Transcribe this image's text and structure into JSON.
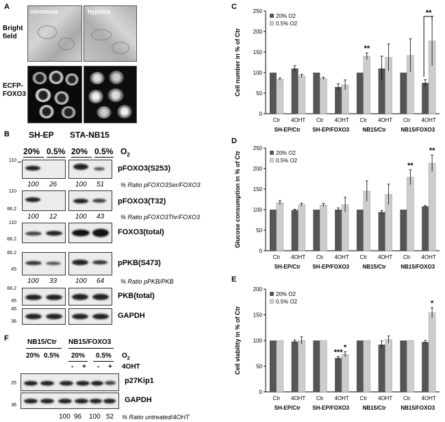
{
  "colors": {
    "dark_bar": "#555555",
    "light_bar": "#cccccc",
    "error_bar": "#000000"
  },
  "panel_a": {
    "label": "A",
    "col_normoxia": "normoxia",
    "col_hypoxia": "hypoxia",
    "row_bright_1": "Bright",
    "row_bright_2": "field",
    "row_ecfp_1": "ECFP-",
    "row_ecfp_2": "FOXO3"
  },
  "panel_b": {
    "label": "B",
    "group_1": "SH-EP",
    "group_2": "STA-NB15",
    "pct_20": "20%",
    "pct_05": "0.5%",
    "o2_label": "O",
    "o2_sub": "2",
    "mw_110": "110",
    "mw_66": "66.2",
    "mw_45": "45",
    "mw_36": "36",
    "blots": [
      {
        "label": "pFOXO3(S253)",
        "ratio_text": "% Ratio pFOXO3Ser/FOXO3",
        "ratios": [
          "100",
          "26",
          "100",
          "51"
        ]
      },
      {
        "label": "pFOXO3(T32)",
        "ratio_text": "% Ratio pFOXO3Thr/FOXO3",
        "ratios": [
          "100",
          "12",
          "100",
          "43"
        ]
      },
      {
        "label": "FOXO3(total)"
      },
      {
        "label": "pPKB(S473)",
        "ratio_text": "% Ratio pPKB/PKB",
        "ratios": [
          "100",
          "33",
          "100",
          "64"
        ]
      },
      {
        "label": "PKB(total)"
      },
      {
        "label": "GAPDH"
      }
    ]
  },
  "panel_f": {
    "label": "F",
    "group_1": "NB15/Ctr",
    "group_2": "NB15/FOXO3",
    "pct_20": "20%",
    "pct_05": "0.5%",
    "o2_label": "O",
    "o2_sub": "2",
    "ohth_label": "4OHT",
    "minus": "-",
    "plus": "+",
    "mw_25": "25",
    "mw_36": "36",
    "blot_1": "p27Kip1",
    "blot_2": "GAPDH",
    "ratios": [
      "100",
      "96",
      "100",
      "52"
    ],
    "ratio_text": "% Ratio untreated/4OHT"
  },
  "chart_data": [
    {
      "panel": "C",
      "type": "bar",
      "ylabel": "Cell number in % of Ctr",
      "ylim": [
        0,
        250
      ],
      "yticks": [
        0,
        50,
        100,
        150,
        200,
        250
      ],
      "categories": [
        "Ctr",
        "4OHT",
        "Ctr",
        "4OHT",
        "Ctr",
        "4OHT",
        "Ctr",
        "4OHT"
      ],
      "groups": [
        "SH-EP/Ctr",
        "SH-EP/FOXO3",
        "NB15/Ctr",
        "NB15/FOXO3"
      ],
      "series": [
        {
          "name": "20% O2",
          "values": [
            100,
            110,
            100,
            65,
            100,
            110,
            100,
            75
          ],
          "errors": [
            0,
            7,
            0,
            8,
            0,
            30,
            0,
            8
          ]
        },
        {
          "name": "0.5% O2",
          "values": [
            84,
            92,
            86,
            70,
            140,
            137,
            142,
            177
          ],
          "errors": [
            3,
            4,
            3,
            12,
            8,
            33,
            40,
            60
          ]
        }
      ],
      "annotations": [
        {
          "text": "**",
          "bar": 9
        },
        {
          "text": "**",
          "bracket": [
            14,
            15
          ]
        }
      ]
    },
    {
      "panel": "D",
      "type": "bar",
      "ylabel": "Glucose consumption in % of Ctr",
      "ylim": [
        0,
        250
      ],
      "yticks": [
        0,
        50,
        100,
        150,
        200,
        250
      ],
      "categories": [
        "Ctr",
        "4OHT",
        "Ctr",
        "4OHT",
        "Ctr",
        "4OHT",
        "Ctr",
        "4OHT"
      ],
      "groups": [
        "SH-EP/Ctr",
        "SH-EP/FOXO3",
        "NB15/Ctr",
        "NB15/FOXO3"
      ],
      "series": [
        {
          "name": "20% O2",
          "values": [
            100,
            99,
            100,
            100,
            100,
            94,
            100,
            108
          ],
          "errors": [
            0,
            2,
            0,
            4,
            0,
            4,
            0,
            2
          ]
        },
        {
          "name": "0.5% O2",
          "values": [
            117,
            112,
            111,
            112,
            145,
            137,
            179,
            213
          ],
          "errors": [
            5,
            4,
            4,
            18,
            25,
            25,
            18,
            20
          ]
        }
      ],
      "annotations": [
        {
          "text": "**",
          "bar": 13
        },
        {
          "text": "**",
          "bar": 15
        }
      ]
    },
    {
      "panel": "E",
      "type": "bar",
      "ylabel": "Cell viability in % of Ctr",
      "ylim": [
        0,
        200
      ],
      "yticks": [
        0,
        50,
        100,
        150,
        200
      ],
      "categories": [
        "Ctr",
        "4OHT",
        "Ctr",
        "4OHT",
        "Ctr",
        "4OHT",
        "Ctr",
        "4OHT"
      ],
      "groups": [
        "SH-EP/Ctr",
        "SH-EP/FOXO3",
        "NB15/Ctr",
        "NB15/FOXO3"
      ],
      "series": [
        {
          "name": "20% O2",
          "values": [
            100,
            98,
            100,
            66,
            100,
            92,
            100,
            97
          ],
          "errors": [
            0,
            3,
            0,
            3,
            0,
            7,
            0,
            3
          ]
        },
        {
          "name": "0.5% O2",
          "values": [
            100,
            100,
            100,
            73,
            100,
            102,
            100,
            154
          ],
          "errors": [
            0,
            7,
            0,
            5,
            0,
            7,
            0,
            10
          ]
        }
      ],
      "annotations": [
        {
          "text": "***",
          "bar": 6
        },
        {
          "text": "*",
          "bar": 7
        },
        {
          "text": "*",
          "bar": 15
        }
      ]
    }
  ]
}
